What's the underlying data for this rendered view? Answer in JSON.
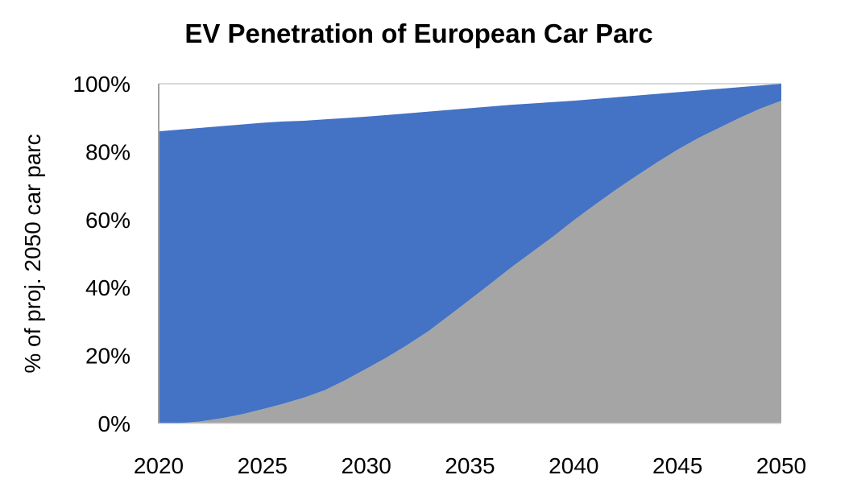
{
  "chart_data": {
    "type": "area",
    "stacked": true,
    "title": "EV Penetration of European Car Parc",
    "xlabel": "",
    "ylabel": "% of proj. 2050 car parc",
    "x": [
      2020,
      2021,
      2022,
      2023,
      2024,
      2025,
      2026,
      2027,
      2028,
      2029,
      2030,
      2031,
      2032,
      2033,
      2034,
      2035,
      2036,
      2037,
      2038,
      2039,
      2040,
      2041,
      2042,
      2043,
      2044,
      2045,
      2046,
      2047,
      2048,
      2049,
      2050
    ],
    "x_ticks": [
      "2020",
      "2025",
      "2030",
      "2035",
      "2040",
      "2045",
      "2050"
    ],
    "y_ticks": [
      "0%",
      "20%",
      "40%",
      "60%",
      "80%",
      "100%"
    ],
    "xlim": [
      2020,
      2050
    ],
    "ylim": [
      0,
      100
    ],
    "grid": "horizontal gridline at 100% only visible",
    "legend": "none",
    "series": [
      {
        "color": "#a5a5a5",
        "values": [
          0,
          0.1,
          0.6,
          1.5,
          2.7,
          4.2,
          5.8,
          7.6,
          9.8,
          12.8,
          16.1,
          19.5,
          23.2,
          27.2,
          31.8,
          36.5,
          41.2,
          46,
          50.5,
          55,
          59.8,
          64.3,
          68.7,
          72.8,
          76.8,
          80.6,
          84,
          87,
          90,
          92.7,
          95
        ]
      },
      {
        "color": "#4472c4",
        "values": [
          86,
          86.4,
          86.4,
          86,
          85.3,
          84.3,
          83.1,
          81.5,
          79.7,
          77.1,
          74.2,
          71.3,
          68.1,
          64.6,
          60.5,
          56.3,
          52.1,
          47.8,
          43.7,
          39.6,
          35.2,
          31.2,
          27.3,
          23.7,
          20.2,
          16.9,
          14,
          11.5,
          9,
          6.8,
          5
        ]
      }
    ]
  }
}
